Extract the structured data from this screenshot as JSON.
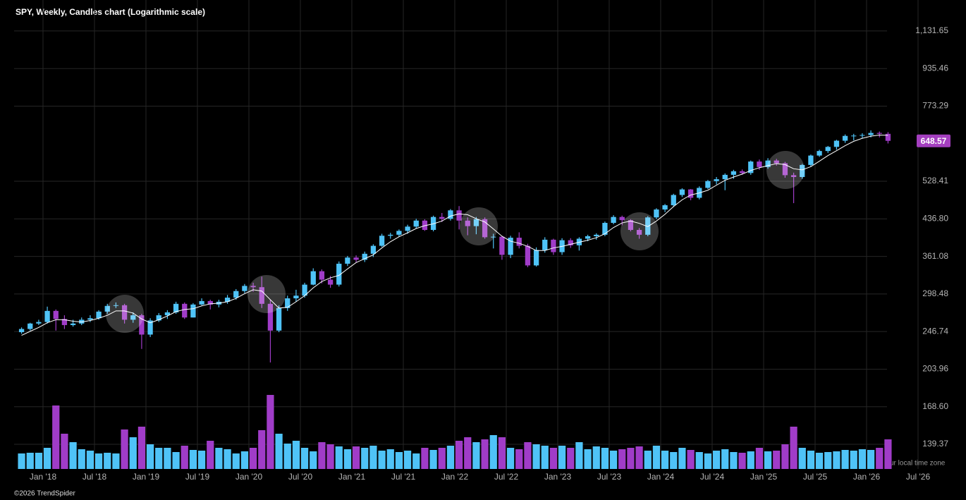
{
  "chart_data": {
    "type": "candlestick",
    "title": "SPY, Weekly, Candles chart (Logarithmic scale)",
    "copyright": "©2026 TrendSpider",
    "timezone_note": "ur local time zone",
    "log_scale": true,
    "grid": true,
    "up_color": "#4fc3f7",
    "down_color": "#a03cc8",
    "ma_color": "#ffffff",
    "price_tag_color": "#a43fbf",
    "xlim": [
      "2017-09",
      "2026-10"
    ],
    "xticks": [
      {
        "value": "2018-01",
        "label": "Jan '18"
      },
      {
        "value": "2018-07",
        "label": "Jul '18"
      },
      {
        "value": "2019-01",
        "label": "Jan '19"
      },
      {
        "value": "2019-07",
        "label": "Jul '19"
      },
      {
        "value": "2020-01",
        "label": "Jan '20"
      },
      {
        "value": "2020-07",
        "label": "Jul '20"
      },
      {
        "value": "2021-01",
        "label": "Jan '21"
      },
      {
        "value": "2021-07",
        "label": "Jul '21"
      },
      {
        "value": "2022-01",
        "label": "Jan '22"
      },
      {
        "value": "2022-07",
        "label": "Jul '22"
      },
      {
        "value": "2023-01",
        "label": "Jan '23"
      },
      {
        "value": "2023-07",
        "label": "Jul '23"
      },
      {
        "value": "2024-01",
        "label": "Jan '24"
      },
      {
        "value": "2024-07",
        "label": "Jul '24"
      },
      {
        "value": "2025-01",
        "label": "Jan '25"
      },
      {
        "value": "2025-07",
        "label": "Jul '25"
      },
      {
        "value": "2026-01",
        "label": "Jan '26"
      },
      {
        "value": "2026-07",
        "label": "Jul '26"
      }
    ],
    "ylim": [
      123,
      1324
    ],
    "yticks": [
      {
        "value": 1131.65,
        "label": "1,131.65"
      },
      935.46,
      773.29,
      528.41,
      {
        "value": 436.8,
        "label": "436.80"
      },
      361.08,
      298.48,
      246.74,
      203.96,
      {
        "value": 168.6,
        "label": "168.60"
      },
      139.37
    ],
    "volume_ylim": [
      0,
      1200
    ],
    "x": [
      "2017-10",
      "2017-11",
      "2017-12",
      "2018-01",
      "2018-02",
      "2018-03",
      "2018-04",
      "2018-05",
      "2018-06",
      "2018-07",
      "2018-08",
      "2018-09",
      "2018-10",
      "2018-11",
      "2018-12",
      "2019-01",
      "2019-02",
      "2019-03",
      "2019-04",
      "2019-05",
      "2019-06",
      "2019-07",
      "2019-08",
      "2019-09",
      "2019-10",
      "2019-11",
      "2019-12",
      "2020-01",
      "2020-02",
      "2020-03",
      "2020-04",
      "2020-05",
      "2020-06",
      "2020-07",
      "2020-08",
      "2020-09",
      "2020-10",
      "2020-11",
      "2020-12",
      "2021-01",
      "2021-02",
      "2021-03",
      "2021-04",
      "2021-05",
      "2021-06",
      "2021-07",
      "2021-08",
      "2021-09",
      "2021-10",
      "2021-11",
      "2021-12",
      "2022-01",
      "2022-02",
      "2022-03",
      "2022-04",
      "2022-05",
      "2022-06",
      "2022-07",
      "2022-08",
      "2022-09",
      "2022-10",
      "2022-11",
      "2022-12",
      "2023-01",
      "2023-02",
      "2023-03",
      "2023-04",
      "2023-05",
      "2023-06",
      "2023-07",
      "2023-08",
      "2023-09",
      "2023-10",
      "2023-11",
      "2023-12",
      "2024-01",
      "2024-02",
      "2024-03",
      "2024-04",
      "2024-05",
      "2024-06",
      "2024-07",
      "2024-08",
      "2024-09",
      "2024-10",
      "2024-11",
      "2024-12",
      "2025-01",
      "2025-02",
      "2025-03",
      "2025-04",
      "2025-05",
      "2025-06",
      "2025-07",
      "2025-08",
      "2025-09",
      "2025-10",
      "2025-11",
      "2025-12",
      "2026-01",
      "2026-02",
      "2026-03"
    ],
    "open": [
      246,
      250,
      257,
      259,
      274,
      263,
      255,
      257,
      262,
      264,
      273,
      281,
      282,
      262,
      268,
      243,
      261,
      268,
      272,
      284,
      265,
      283,
      288,
      283,
      287,
      293,
      303,
      311,
      309,
      284,
      248,
      278,
      292,
      296,
      313,
      335,
      321,
      313,
      348,
      359,
      355,
      366,
      381,
      401,
      403,
      411,
      420,
      433,
      413,
      441,
      437,
      456,
      433,
      421,
      436,
      398,
      399,
      364,
      397,
      381,
      345,
      373,
      393,
      369,
      392,
      382,
      395,
      400,
      403,
      428,
      441,
      434,
      413,
      403,
      440,
      458,
      468,
      493,
      507,
      486,
      511,
      529,
      534,
      546,
      556,
      551,
      584,
      568,
      587,
      579,
      545,
      540,
      574,
      602,
      616,
      629,
      649,
      665,
      666,
      668,
      675,
      672
    ],
    "high": [
      252,
      258,
      262,
      280,
      276,
      268,
      262,
      265,
      268,
      275,
      284,
      286,
      284,
      272,
      270,
      264,
      271,
      275,
      287,
      286,
      285,
      292,
      290,
      290,
      297,
      306,
      314,
      316,
      326,
      290,
      282,
      296,
      305,
      316,
      340,
      338,
      327,
      352,
      362,
      363,
      370,
      384,
      405,
      407,
      414,
      424,
      437,
      436,
      444,
      450,
      459,
      466,
      440,
      441,
      440,
      405,
      401,
      401,
      408,
      385,
      378,
      398,
      395,
      396,
      396,
      398,
      403,
      406,
      431,
      445,
      444,
      436,
      417,
      443,
      461,
      471,
      496,
      510,
      508,
      515,
      532,
      540,
      550,
      560,
      561,
      587,
      590,
      594,
      592,
      583,
      552,
      577,
      605,
      620,
      632,
      652,
      670,
      672,
      674,
      684,
      680,
      678
    ],
    "low": [
      244,
      248,
      255,
      257,
      248,
      250,
      253,
      255,
      259,
      262,
      270,
      278,
      257,
      258,
      226,
      240,
      259,
      263,
      270,
      263,
      265,
      282,
      276,
      279,
      284,
      290,
      300,
      302,
      278,
      211,
      246,
      274,
      287,
      293,
      312,
      315,
      308,
      310,
      344,
      350,
      351,
      360,
      379,
      395,
      399,
      405,
      416,
      411,
      410,
      430,
      433,
      414,
      402,
      404,
      395,
      376,
      355,
      358,
      376,
      342,
      343,
      368,
      364,
      364,
      377,
      372,
      390,
      393,
      400,
      425,
      423,
      410,
      395,
      400,
      436,
      452,
      464,
      488,
      480,
      482,
      508,
      520,
      505,
      535,
      546,
      546,
      560,
      563,
      572,
      538,
      473,
      535,
      570,
      598,
      610,
      620,
      642,
      650,
      656,
      660,
      660,
      640
    ],
    "close": [
      250,
      257,
      259,
      274,
      263,
      255,
      257,
      262,
      264,
      273,
      281,
      282,
      262,
      268,
      243,
      261,
      268,
      272,
      284,
      265,
      283,
      288,
      283,
      287,
      293,
      303,
      311,
      309,
      284,
      248,
      278,
      292,
      296,
      313,
      335,
      321,
      313,
      348,
      359,
      355,
      366,
      381,
      401,
      403,
      411,
      420,
      433,
      413,
      441,
      437,
      456,
      433,
      421,
      436,
      398,
      399,
      364,
      397,
      381,
      345,
      373,
      393,
      369,
      392,
      382,
      395,
      400,
      403,
      428,
      441,
      434,
      413,
      403,
      440,
      458,
      468,
      493,
      507,
      486,
      511,
      529,
      534,
      546,
      556,
      551,
      584,
      568,
      587,
      579,
      545,
      540,
      574,
      602,
      616,
      629,
      649,
      665,
      666,
      668,
      675,
      672,
      648.57
    ],
    "volume": [
      220,
      230,
      230,
      300,
      900,
      500,
      380,
      280,
      260,
      220,
      230,
      220,
      560,
      450,
      600,
      350,
      300,
      300,
      240,
      330,
      270,
      260,
      400,
      300,
      280,
      220,
      250,
      300,
      550,
      1050,
      500,
      360,
      400,
      300,
      250,
      380,
      350,
      320,
      280,
      320,
      300,
      330,
      260,
      280,
      240,
      260,
      220,
      300,
      270,
      300,
      330,
      400,
      450,
      380,
      420,
      480,
      450,
      300,
      280,
      380,
      350,
      330,
      300,
      330,
      300,
      380,
      280,
      320,
      300,
      260,
      280,
      300,
      320,
      260,
      330,
      260,
      240,
      300,
      270,
      240,
      220,
      260,
      280,
      240,
      230,
      250,
      300,
      250,
      260,
      350,
      600,
      300,
      260,
      230,
      240,
      250,
      270,
      260,
      280,
      270,
      300,
      420
    ],
    "ma": [
      242,
      247,
      252,
      258,
      262,
      262,
      260,
      259,
      261,
      264,
      268,
      274,
      274,
      271,
      263,
      258,
      262,
      267,
      273,
      276,
      277,
      281,
      284,
      285,
      287,
      292,
      299,
      305,
      303,
      290,
      278,
      279,
      287,
      296,
      308,
      318,
      324,
      328,
      339,
      350,
      357,
      364,
      377,
      389,
      399,
      407,
      416,
      422,
      426,
      432,
      443,
      448,
      446,
      437,
      430,
      415,
      400,
      390,
      386,
      380,
      372,
      372,
      377,
      380,
      384,
      388,
      392,
      397,
      405,
      418,
      428,
      432,
      427,
      420,
      432,
      447,
      465,
      481,
      493,
      498,
      505,
      518,
      531,
      540,
      548,
      558,
      566,
      572,
      578,
      575,
      563,
      560,
      569,
      585,
      602,
      617,
      633,
      647,
      657,
      664,
      668,
      667
    ]
  }
}
